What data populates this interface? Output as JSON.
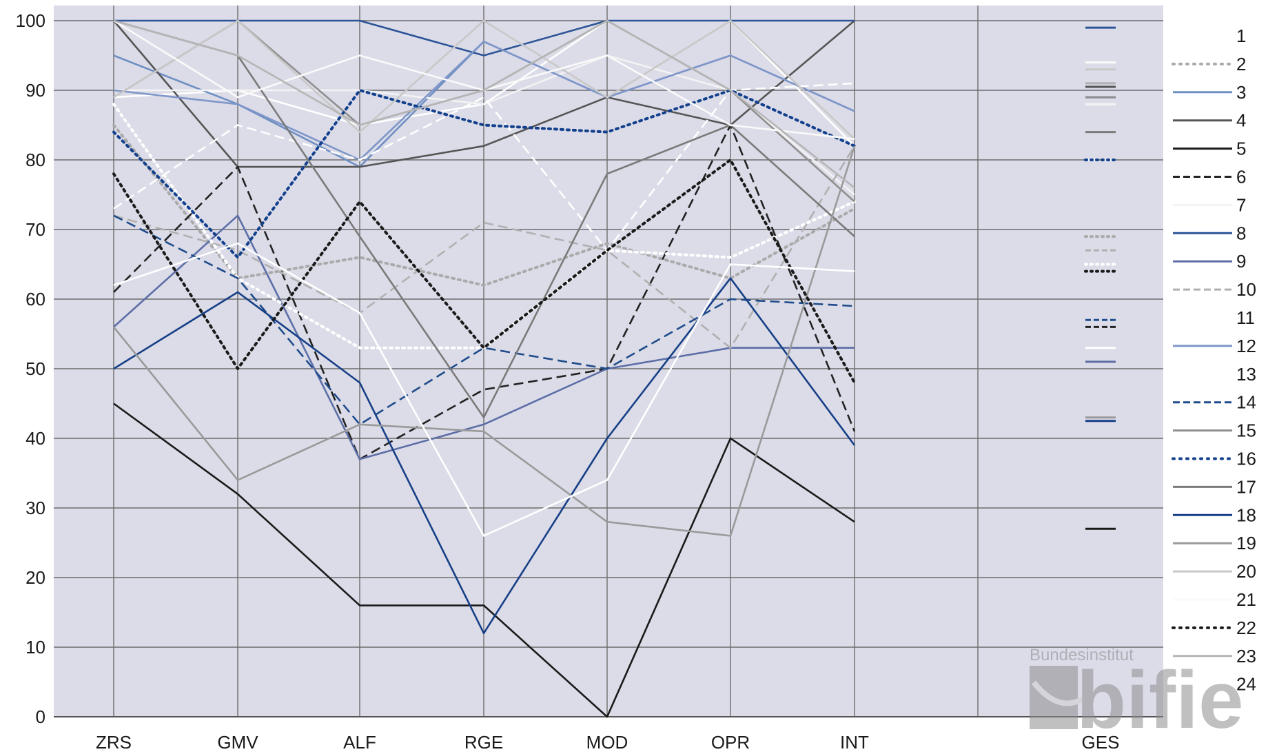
{
  "chart_data": {
    "type": "line",
    "title": "",
    "xlabel": "",
    "ylabel": "",
    "categories": [
      "ZRS",
      "GMV",
      "ALF",
      "RGE",
      "MOD",
      "OPR",
      "INT"
    ],
    "summary_category": "GES",
    "ylim": [
      0,
      100
    ],
    "yticks": [
      "0",
      "10",
      "20",
      "30",
      "40",
      "50",
      "60",
      "70",
      "80",
      "90",
      "100"
    ],
    "grid": true,
    "legend_position": "right",
    "series": [
      {
        "name": "1",
        "color": "#ffffff",
        "style": "solid",
        "values": [
          89,
          90,
          85,
          88,
          100,
          100,
          82
        ],
        "ges": 88
      },
      {
        "name": "2",
        "color": "#aaaaaa",
        "style": "dotted",
        "values": [
          85,
          63,
          66,
          62,
          68,
          63,
          73
        ],
        "ges": 69
      },
      {
        "name": "3",
        "color": "#6f8fc2",
        "style": "solid",
        "values": [
          95,
          88,
          79,
          97,
          89,
          95,
          87
        ],
        "ges": 89
      },
      {
        "name": "4",
        "color": "#555555",
        "style": "solid",
        "values": [
          100,
          79,
          79,
          82,
          89,
          85,
          100
        ],
        "ges": 90.5
      },
      {
        "name": "5",
        "color": "#1a1a1a",
        "style": "solid",
        "values": [
          45,
          32,
          16,
          16,
          0,
          40,
          28
        ],
        "ges": 27
      },
      {
        "name": "6",
        "color": "#222222",
        "style": "dashed",
        "values": [
          61,
          79,
          37,
          47,
          50,
          85,
          41
        ],
        "ges": 56
      },
      {
        "name": "7",
        "color": "#f3f3f3",
        "style": "solid",
        "values": [
          90,
          90,
          90,
          88,
          95,
          90,
          75
        ],
        "ges": 88
      },
      {
        "name": "8",
        "color": "#2c5497",
        "style": "solid",
        "values": [
          100,
          100,
          100,
          95,
          100,
          100,
          100
        ],
        "ges": 99
      },
      {
        "name": "9",
        "color": "#5c6ea6",
        "style": "solid",
        "values": [
          56,
          72,
          37,
          42,
          50,
          53,
          53
        ],
        "ges": 51
      },
      {
        "name": "10",
        "color": "#b0b0b0",
        "style": "dashed",
        "values": [
          72,
          67,
          58,
          71,
          67,
          53,
          82
        ],
        "ges": 67
      },
      {
        "name": "11",
        "color": "#ffffff",
        "style": "dotted",
        "values": [
          88,
          63,
          53,
          53,
          67,
          66,
          74
        ],
        "ges": 65
      },
      {
        "name": "12",
        "color": "#7e96c8",
        "style": "solid",
        "values": [
          90,
          88,
          80,
          97,
          89,
          95,
          87
        ],
        "ges": 91
      },
      {
        "name": "13",
        "color": "#ffffff",
        "style": "dashed",
        "values": [
          73,
          85,
          80,
          89,
          67,
          90,
          91
        ],
        "ges": 80
      },
      {
        "name": "14",
        "color": "#1f4c8a",
        "style": "dashed",
        "values": [
          72,
          63,
          42,
          53,
          50,
          60,
          59
        ],
        "ges": 57
      },
      {
        "name": "15",
        "color": "#8f8f8f",
        "style": "solid",
        "values": [
          89,
          100,
          85,
          90,
          100,
          90,
          74
        ],
        "ges": 89
      },
      {
        "name": "16",
        "color": "#12408c",
        "style": "dotted",
        "values": [
          84,
          66,
          90,
          85,
          84,
          90,
          82
        ],
        "ges": 80
      },
      {
        "name": "17",
        "color": "#7a7a7a",
        "style": "solid",
        "values": [
          100,
          95,
          69,
          43,
          78,
          85,
          69
        ],
        "ges": 84
      },
      {
        "name": "18",
        "color": "#163f86",
        "style": "solid",
        "values": [
          50,
          61,
          48,
          12,
          40,
          63,
          39
        ],
        "ges": 42.5
      },
      {
        "name": "19",
        "color": "#9a9a9a",
        "style": "solid",
        "values": [
          56,
          34,
          42,
          41,
          28,
          26,
          82
        ],
        "ges": 43
      },
      {
        "name": "20",
        "color": "#c8c8c8",
        "style": "solid",
        "values": [
          89,
          100,
          84,
          100,
          89,
          100,
          83
        ],
        "ges": 93
      },
      {
        "name": "21",
        "color": "#fafafa",
        "style": "solid",
        "values": [
          100,
          89,
          95,
          90,
          95,
          85,
          83
        ],
        "ges": 94
      },
      {
        "name": "22",
        "color": "#1a1a1a",
        "style": "dotted",
        "values": [
          78,
          50,
          74,
          53,
          67,
          80,
          48
        ],
        "ges": 64
      },
      {
        "name": "23",
        "color": "#b5b5b5",
        "style": "solid",
        "values": [
          100,
          95,
          85,
          90,
          100,
          90,
          76
        ],
        "ges": 91
      },
      {
        "name": "24",
        "color": "#ffffff",
        "style": "solid",
        "values": [
          62,
          68,
          58,
          26,
          34,
          65,
          64
        ],
        "ges": 53
      }
    ]
  },
  "logo": {
    "top_text": "Bundesinstitut",
    "word": "bifie"
  }
}
